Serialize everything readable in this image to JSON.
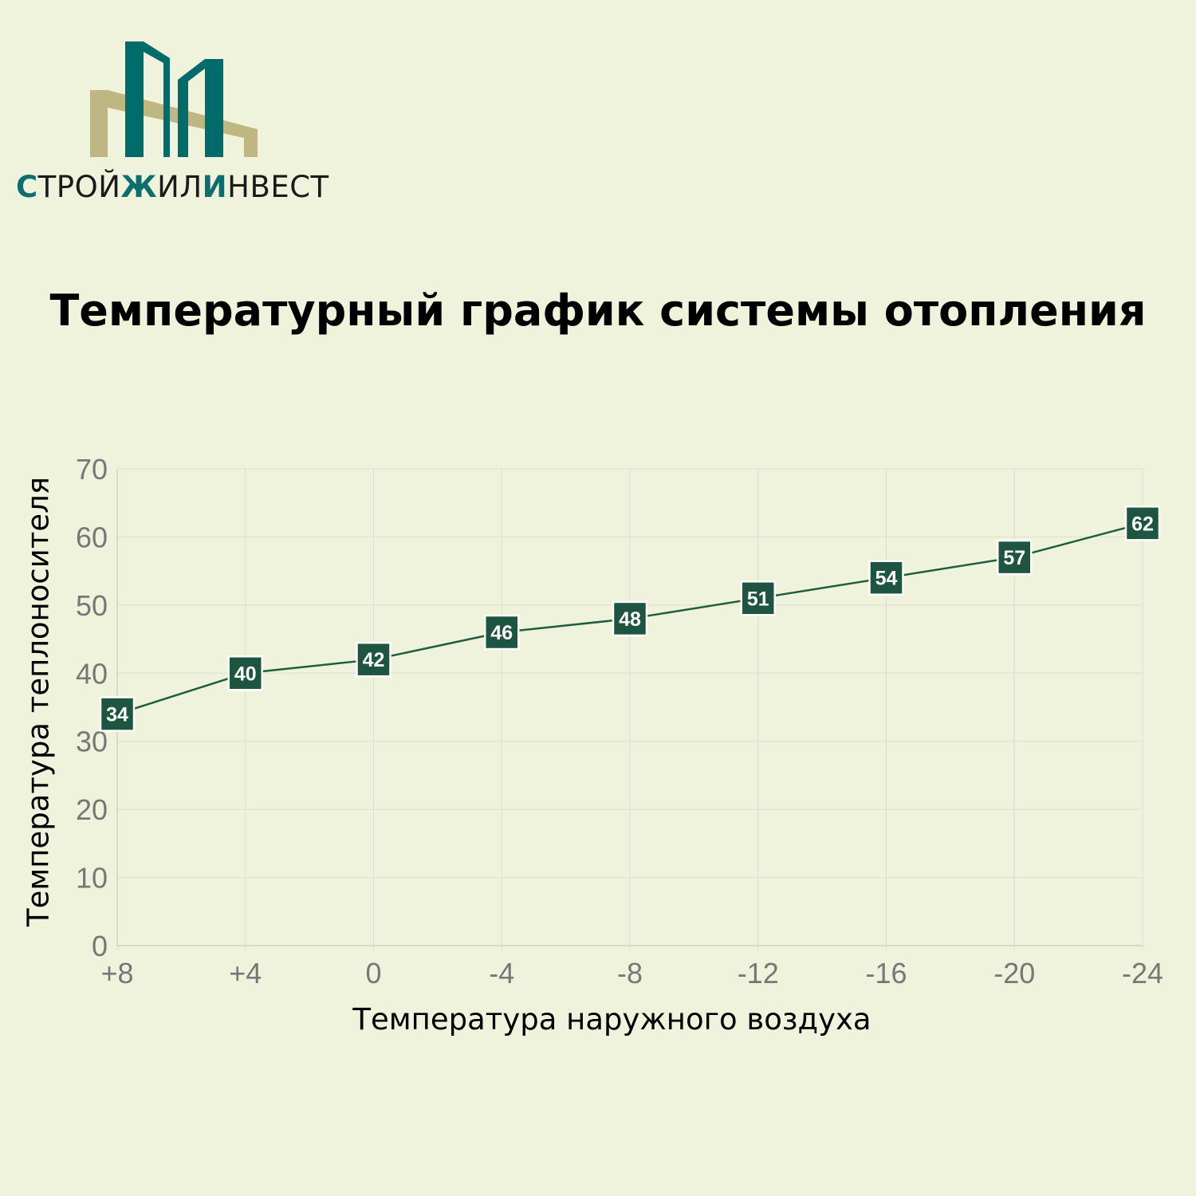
{
  "brand": {
    "name_parts": [
      "С",
      "ТРОЙ",
      "Ж",
      "ИЛ",
      "И",
      "НВЕСТ"
    ],
    "colors": {
      "teal": "#006b6b",
      "khaki": "#bfb782"
    }
  },
  "chart_data": {
    "type": "line",
    "title": "Температурный график системы отопления",
    "xlabel": "Температура наружного воздуха",
    "ylabel": "Температура теплоносителя",
    "categories": [
      "+8",
      "+4",
      "0",
      "-4",
      "-8",
      "-12",
      "-16",
      "-20",
      "-24"
    ],
    "series": [
      {
        "values": [
          34,
          40,
          42,
          46,
          48,
          51,
          54,
          57,
          62
        ]
      }
    ],
    "ylim": [
      0,
      70
    ],
    "yticks": [
      0,
      10,
      20,
      30,
      40,
      50,
      60,
      70
    ],
    "grid": true,
    "colors": {
      "line": "#1e5e3e",
      "marker": "#1d5540",
      "marker_text": "#ffffff",
      "grid": "#dcdfcb",
      "tick": "#777777"
    }
  }
}
